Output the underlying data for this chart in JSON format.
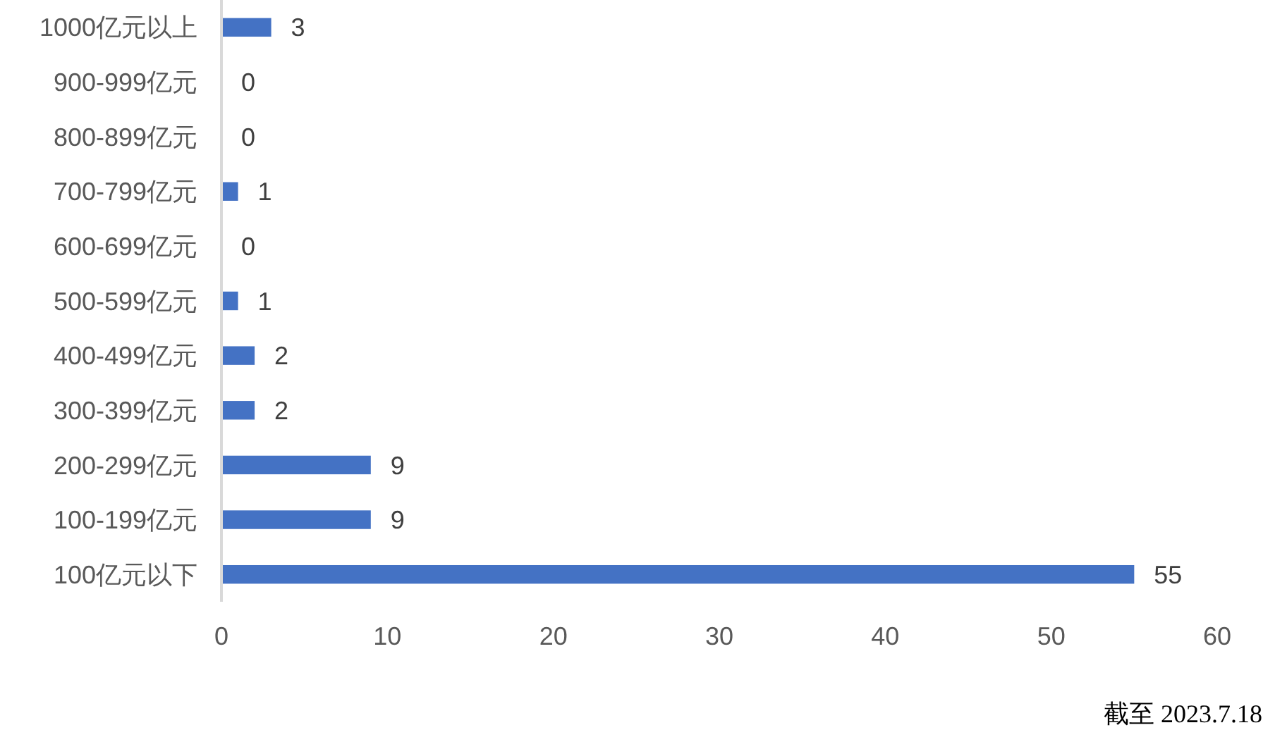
{
  "chart_data": {
    "type": "bar",
    "orientation": "horizontal",
    "categories": [
      "1000亿元以上",
      "900-999亿元",
      "800-899亿元",
      "700-799亿元",
      "600-699亿元",
      "500-599亿元",
      "400-499亿元",
      "300-399亿元",
      "200-299亿元",
      "100-199亿元",
      "100亿元以下"
    ],
    "values": [
      3,
      0,
      0,
      1,
      0,
      1,
      2,
      2,
      9,
      9,
      55
    ],
    "color": "#4472c4",
    "xlim": [
      0,
      60
    ],
    "xticks": [
      0,
      10,
      20,
      30,
      40,
      50,
      60
    ],
    "data_labels": true,
    "annotations": [
      "截至 2023.7.18"
    ]
  }
}
